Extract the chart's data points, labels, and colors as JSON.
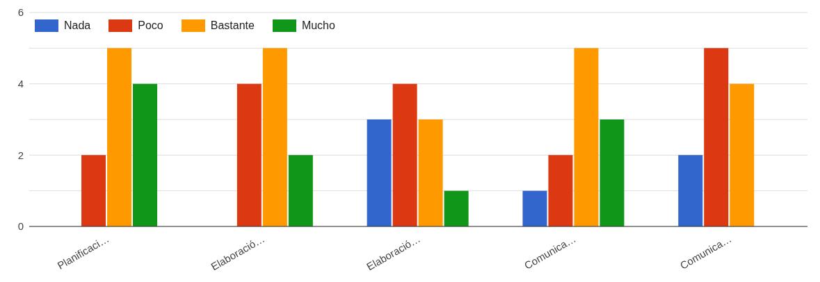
{
  "chart_data": {
    "type": "bar",
    "categories": [
      "Planificaci…",
      "Elaboració…",
      "Elaboració…",
      "Comunica…",
      "Comunica…"
    ],
    "series": [
      {
        "name": "Nada",
        "color": "#3366cc",
        "values": [
          0,
          0,
          3,
          1,
          2
        ]
      },
      {
        "name": "Poco",
        "color": "#dc3912",
        "values": [
          2,
          4,
          4,
          2,
          5
        ]
      },
      {
        "name": "Bastante",
        "color": "#ff9900",
        "values": [
          5,
          5,
          3,
          5,
          4
        ]
      },
      {
        "name": "Mucho",
        "color": "#109618",
        "values": [
          4,
          2,
          1,
          3,
          0
        ]
      }
    ],
    "ylim": [
      0,
      6
    ],
    "yticks": [
      0,
      {
        "value": 1,
        "label": null
      },
      2,
      {
        "value": 3,
        "label": null
      },
      4,
      {
        "value": 5,
        "label": null
      },
      6
    ],
    "grid": "y",
    "legend": "top left"
  }
}
